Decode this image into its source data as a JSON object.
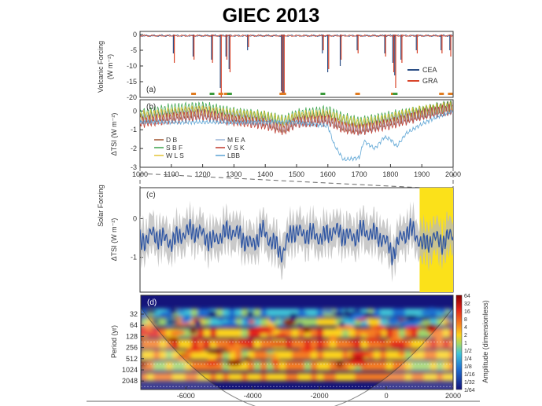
{
  "slide": {
    "title": "GIEC 2013"
  },
  "chart_data": [
    {
      "type": "line",
      "panel_label": "(a)",
      "ylabel_line1": "Volcanic Forcing",
      "ylabel_line2": "(W m⁻²)",
      "xlim": [
        1000,
        2000
      ],
      "ylim": [
        -20,
        1
      ],
      "yticks": [
        "0",
        "-5",
        "-10",
        "-15",
        "-20"
      ],
      "legend_position": "right",
      "series": [
        {
          "name": "CEA",
          "color": "#2c4f86",
          "events": [
            [
              1108,
              -6
            ],
            [
              1171,
              -7
            ],
            [
              1230,
              -8
            ],
            [
              1258,
              -17
            ],
            [
              1276,
              -7
            ],
            [
              1286,
              -11
            ],
            [
              1345,
              -5
            ],
            [
              1453,
              -18
            ],
            [
              1459,
              -19
            ],
            [
              1584,
              -6
            ],
            [
              1601,
              -12
            ],
            [
              1641,
              -10
            ],
            [
              1695,
              -5
            ],
            [
              1783,
              -6
            ],
            [
              1809,
              -9
            ],
            [
              1815,
              -13
            ],
            [
              1835,
              -8
            ],
            [
              1884,
              -5
            ],
            [
              1963,
              -5
            ],
            [
              1991,
              -5
            ]
          ]
        },
        {
          "name": "GRA",
          "color": "#d8452a",
          "events": [
            [
              1108,
              -9
            ],
            [
              1171,
              -8
            ],
            [
              1230,
              -9
            ],
            [
              1258,
              -20
            ],
            [
              1276,
              -8
            ],
            [
              1286,
              -12
            ],
            [
              1345,
              -4
            ],
            [
              1453,
              -19
            ],
            [
              1459,
              -19
            ],
            [
              1584,
              -5
            ],
            [
              1601,
              -11
            ],
            [
              1641,
              -8
            ],
            [
              1695,
              -6
            ],
            [
              1783,
              -7
            ],
            [
              1809,
              -12
            ],
            [
              1815,
              -17
            ],
            [
              1835,
              -9
            ],
            [
              1884,
              -6
            ],
            [
              1963,
              -6
            ],
            [
              1991,
              -7
            ]
          ]
        }
      ]
    },
    {
      "type": "line",
      "panel_label": "(b)",
      "ylabel": "ΔTSI (W m⁻²)",
      "xlim": [
        1000,
        2000
      ],
      "ylim": [
        -3,
        0.6
      ],
      "yticks": [
        "0",
        "-1",
        "-2",
        "-3"
      ],
      "xticks": [
        "1000",
        "1100",
        "1200",
        "1300",
        "1400",
        "1500",
        "1600",
        "1700",
        "1800",
        "1900",
        "2000"
      ],
      "legend_position": "bottom-left",
      "series": [
        {
          "name": "D B",
          "color": "#a0522d",
          "x": [
            1000,
            1100,
            1200,
            1300,
            1400,
            1460,
            1500,
            1600,
            1650,
            1700,
            1800,
            1900,
            2000
          ],
          "y": [
            -0.4,
            -0.2,
            0.0,
            -0.3,
            -0.5,
            -0.9,
            -0.4,
            -0.3,
            -0.8,
            -0.9,
            -0.5,
            -0.1,
            0.3
          ]
        },
        {
          "name": "S B F",
          "color": "#3aa34a",
          "x": [
            1000,
            1100,
            1200,
            1300,
            1400,
            1460,
            1500,
            1600,
            1650,
            1700,
            1800,
            1900,
            2000
          ],
          "y": [
            -0.2,
            0.1,
            0.2,
            -0.1,
            -0.3,
            -0.5,
            -0.2,
            0.0,
            -0.4,
            -0.6,
            -0.3,
            0.0,
            0.3
          ]
        },
        {
          "name": "W L S",
          "color": "#e3c436",
          "x": [
            1000,
            1100,
            1200,
            1300,
            1400,
            1460,
            1500,
            1600,
            1650,
            1700,
            1800,
            1900,
            2000
          ],
          "y": [
            -0.3,
            -0.1,
            0.0,
            -0.2,
            -0.3,
            -0.6,
            -0.3,
            -0.2,
            -0.5,
            -0.7,
            -0.4,
            0.0,
            0.2
          ]
        },
        {
          "name": "M E A",
          "color": "#9bb5d8",
          "x": [
            1000,
            1100,
            1200,
            1300,
            1400,
            1460,
            1500,
            1600,
            1650,
            1700,
            1800,
            1900,
            2000
          ],
          "y": [
            -0.5,
            -0.3,
            -0.2,
            -0.4,
            -0.6,
            -0.9,
            -0.6,
            -0.5,
            -0.8,
            -1.0,
            -0.6,
            -0.2,
            0.1
          ]
        },
        {
          "name": "V S K",
          "color": "#c0392b",
          "x": [
            1000,
            1100,
            1200,
            1300,
            1400,
            1460,
            1500,
            1600,
            1650,
            1700,
            1800,
            1900,
            2000
          ],
          "y": [
            -0.6,
            -0.4,
            -0.2,
            -0.5,
            -0.7,
            -1.0,
            -0.6,
            -0.5,
            -0.9,
            -1.0,
            -0.7,
            -0.2,
            0.1
          ]
        },
        {
          "name": "LBB",
          "color": "#5aa3d4",
          "x": [
            1000,
            1500,
            1600,
            1620,
            1650,
            1700,
            1715,
            1750,
            1780,
            1800,
            1820,
            1850,
            1900,
            1950,
            2000
          ],
          "y": [
            -0.6,
            -0.6,
            -0.8,
            -1.8,
            -2.6,
            -2.5,
            -1.6,
            -2.0,
            -1.4,
            -1.5,
            -1.9,
            -1.2,
            -0.7,
            -0.3,
            0.0
          ]
        }
      ]
    },
    {
      "type": "line",
      "panel_label": "(c)",
      "ylabel": "ΔTSI (W m⁻²)",
      "group_label": "Solar Forcing",
      "xlim": [
        -7350,
        2000
      ],
      "ylim": [
        -1.9,
        0.8
      ],
      "yticks": [
        "0",
        "-1"
      ],
      "highlight_range": [
        1000,
        2000
      ],
      "series": [
        {
          "name": "",
          "color": "#2f56a3",
          "x": [
            -7300,
            -7000,
            -6700,
            -6400,
            -6100,
            -5800,
            -5500,
            -5200,
            -4900,
            -4600,
            -4300,
            -4000,
            -3700,
            -3400,
            -3100,
            -2800,
            -2500,
            -2200,
            -1900,
            -1600,
            -1300,
            -1000,
            -700,
            -400,
            -100,
            200,
            500,
            800,
            1100,
            1400,
            1700,
            2000
          ],
          "y": [
            -0.6,
            -0.4,
            -0.5,
            -0.6,
            -0.4,
            -0.3,
            -0.4,
            -0.6,
            -0.4,
            -0.3,
            -0.5,
            -0.7,
            -0.3,
            -0.6,
            -0.9,
            -0.3,
            -0.4,
            -0.4,
            -0.5,
            -0.3,
            -0.4,
            -0.5,
            -0.3,
            -0.4,
            -0.5,
            -0.9,
            -0.4,
            -0.3,
            -0.7,
            -0.5,
            -0.6,
            -0.4
          ]
        }
      ]
    },
    {
      "type": "heatmap",
      "panel_label": "(d)",
      "ylabel": "Period (yr)",
      "xlim": [
        -7350,
        2000
      ],
      "xticks": [
        "-6000",
        "-4000",
        "-2000",
        "0",
        "2000"
      ],
      "yticks": [
        "32",
        "64",
        "128",
        "256",
        "512",
        "1024",
        "2048"
      ],
      "colorbar_label": "Amplitude (dimensionless)",
      "colorbar_ticks": [
        "64",
        "32",
        "16",
        "8",
        "4",
        "2",
        "1",
        "1/2",
        "1/4",
        "1/8",
        "1/16",
        "1/32",
        "1/64"
      ],
      "colors": [
        "#8b0000",
        "#e2231a",
        "#f57c20",
        "#fcd21c",
        "#9fd66b",
        "#3fc4d8",
        "#1f6fd0",
        "#14147a"
      ]
    }
  ]
}
